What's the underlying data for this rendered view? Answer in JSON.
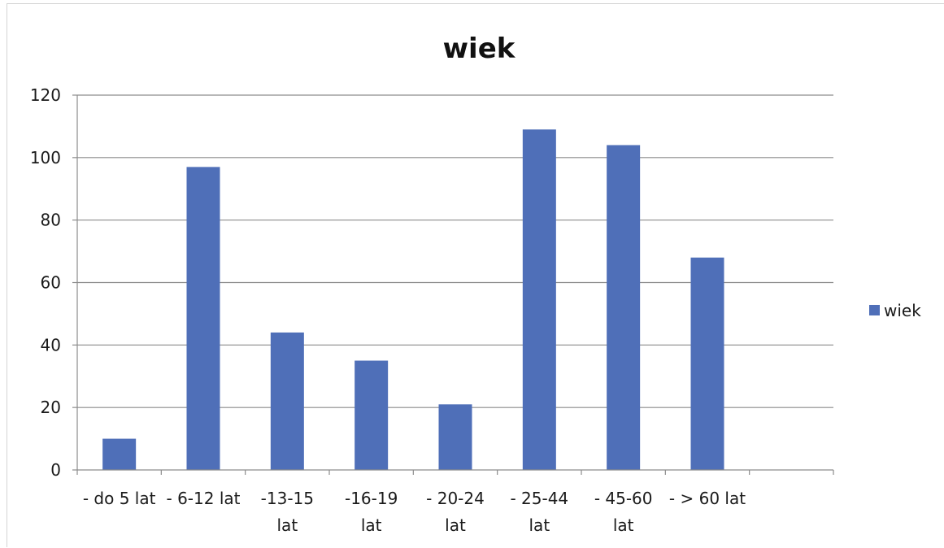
{
  "chart_data": {
    "type": "bar",
    "title": "wiek",
    "categories": [
      [
        "- do 5 lat"
      ],
      [
        "- 6-12 lat"
      ],
      [
        "-13-15",
        "lat"
      ],
      [
        "-16-19",
        "lat"
      ],
      [
        "- 20-24",
        "lat"
      ],
      [
        "- 25-44",
        "lat"
      ],
      [
        "- 45-60",
        "lat"
      ],
      [
        "- > 60 lat"
      ],
      [
        ""
      ]
    ],
    "series": [
      {
        "name": "wiek",
        "color": "#4f6fb8",
        "values": [
          10,
          97,
          44,
          35,
          21,
          109,
          104,
          68,
          null
        ]
      }
    ],
    "yticks": [
      "0",
      "20",
      "40",
      "60",
      "80",
      "100",
      "120"
    ],
    "ylim": [
      0,
      120
    ],
    "grid": true,
    "legend": "right"
  }
}
